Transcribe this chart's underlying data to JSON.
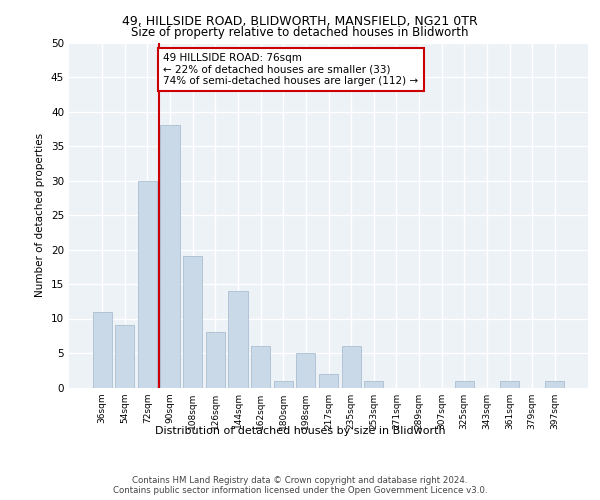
{
  "title1": "49, HILLSIDE ROAD, BLIDWORTH, MANSFIELD, NG21 0TR",
  "title2": "Size of property relative to detached houses in Blidworth",
  "xlabel": "Distribution of detached houses by size in Blidworth",
  "ylabel": "Number of detached properties",
  "categories": [
    "36sqm",
    "54sqm",
    "72sqm",
    "90sqm",
    "108sqm",
    "126sqm",
    "144sqm",
    "162sqm",
    "180sqm",
    "198sqm",
    "217sqm",
    "235sqm",
    "253sqm",
    "271sqm",
    "289sqm",
    "307sqm",
    "325sqm",
    "343sqm",
    "361sqm",
    "379sqm",
    "397sqm"
  ],
  "values": [
    11,
    9,
    30,
    38,
    19,
    8,
    14,
    6,
    1,
    5,
    2,
    6,
    1,
    0,
    0,
    0,
    1,
    0,
    1,
    0,
    1
  ],
  "bar_color": "#c9d9e8",
  "bar_edgecolor": "#a0b8cc",
  "annotation_text": "49 HILLSIDE ROAD: 76sqm\n← 22% of detached houses are smaller (33)\n74% of semi-detached houses are larger (112) →",
  "annotation_box_color": "#ffffff",
  "annotation_box_edgecolor": "#cc0000",
  "redline_color": "#cc0000",
  "ylim": [
    0,
    50
  ],
  "yticks": [
    0,
    5,
    10,
    15,
    20,
    25,
    30,
    35,
    40,
    45,
    50
  ],
  "footer_line1": "Contains HM Land Registry data © Crown copyright and database right 2024.",
  "footer_line2": "Contains public sector information licensed under the Open Government Licence v3.0.",
  "bg_color": "#edf2f7",
  "grid_color": "#ffffff",
  "title1_fontsize": 9,
  "title2_fontsize": 8.5,
  "ylabel_fontsize": 7.5,
  "xlabel_fontsize": 8,
  "tick_fontsize": 7.5,
  "xtick_fontsize": 6.5,
  "footer_fontsize": 6.2,
  "ann_fontsize": 7.5
}
